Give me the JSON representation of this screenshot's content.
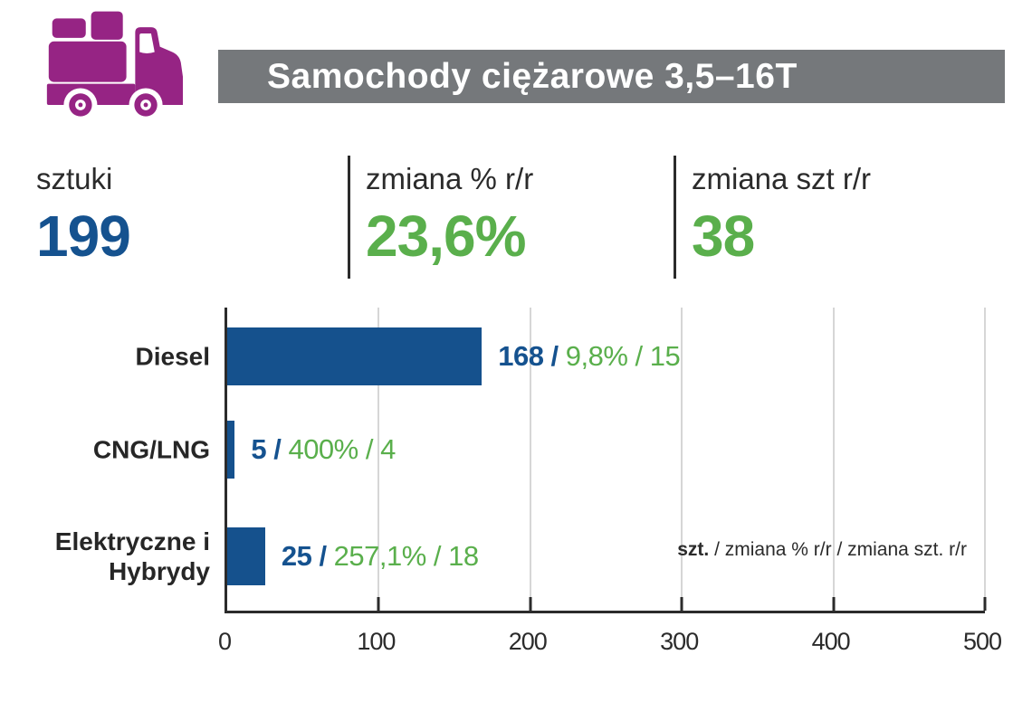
{
  "header": {
    "title": "Samochody ciężarowe 3,5–16T",
    "icon": "truck-icon",
    "bar_color": "#75787b",
    "icon_color": "#962484"
  },
  "summary": {
    "units": {
      "label": "sztuki",
      "value": "199",
      "color": "#15528f"
    },
    "change_pct": {
      "label": "zmiana % r/r",
      "value": "23,6%",
      "color": "#5aaf4c"
    },
    "change_units": {
      "label": "zmiana szt r/r",
      "value": "38",
      "color": "#5aaf4c"
    }
  },
  "chart_data": {
    "type": "bar",
    "orientation": "horizontal",
    "categories": [
      "Diesel",
      "CNG/LNG",
      "Elektryczne i Hybrydy"
    ],
    "series": [
      {
        "name": "szt.",
        "values": [
          168,
          5,
          25
        ]
      },
      {
        "name": "zmiana % r/r",
        "values": [
          "9,8%",
          "400%",
          "257,1%"
        ]
      },
      {
        "name": "zmiana szt. r/r",
        "values": [
          15,
          4,
          18
        ]
      }
    ],
    "bar_labels": [
      "168 / 9,8% / 15",
      "5 / 400% / 4",
      "25 / 257,1% / 18"
    ],
    "xlim": [
      0,
      500
    ],
    "x_ticks": [
      "0",
      "100",
      "200",
      "300",
      "400",
      "500"
    ],
    "grid": true,
    "legend": {
      "bold": "szt.",
      "rest": " / zmiana % r/r / zmiana szt. r/r",
      "position": "inside-bottom-right"
    },
    "bar_color": "#15518d",
    "label_separator": " / "
  },
  "colors": {
    "accent_blue": "#15528f",
    "accent_green": "#5aaf4c",
    "brand_purple": "#962484",
    "header_gray": "#75787b",
    "axis": "#2b2b2b",
    "gridline": "#d6d6d6"
  }
}
